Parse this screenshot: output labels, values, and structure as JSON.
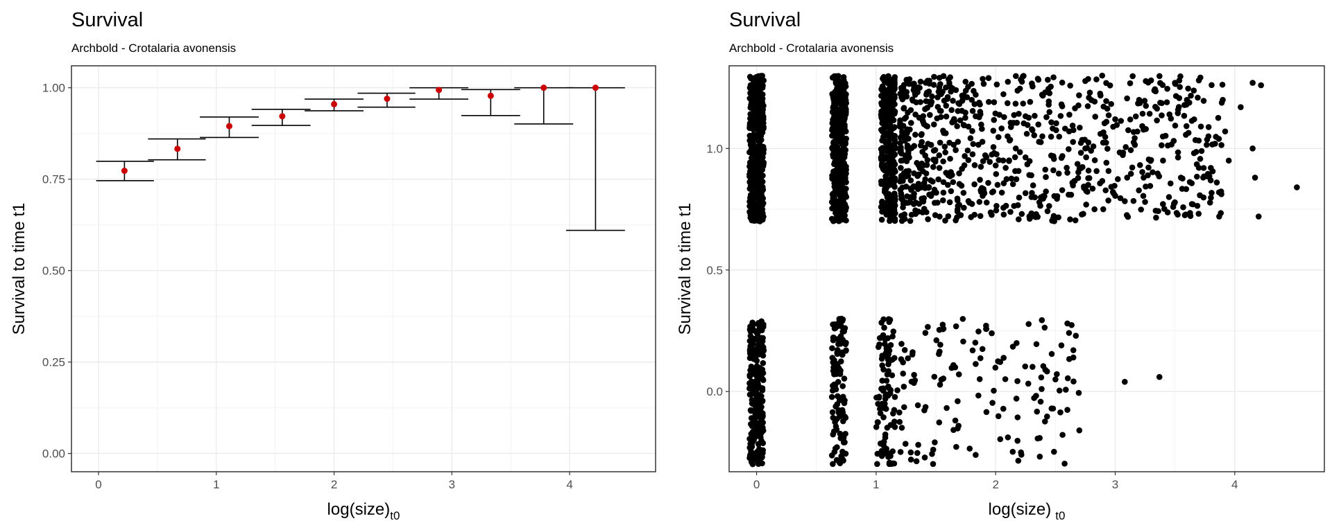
{
  "chart_data": [
    {
      "type": "errorbar",
      "title": "Survival",
      "subtitle": "Archbold - Crotalaria avonensis",
      "xlabel": "log(size)",
      "xlabel_subscript": "t0",
      "ylabel": "Survival to time t1",
      "xlim": [
        -0.23,
        4.73
      ],
      "ylim": [
        -0.05,
        1.06
      ],
      "xticks": [
        0,
        1,
        2,
        3,
        4
      ],
      "xtick_labels": [
        "0",
        "1",
        "2",
        "3",
        "4"
      ],
      "yticks": [
        0,
        0.25,
        0.5,
        0.75,
        1.0
      ],
      "ytick_labels": [
        "0.00",
        "0.25",
        "0.50",
        "0.75",
        "1.00"
      ],
      "grid": true,
      "point_color": "#cc0000",
      "bar_color": "#000000",
      "points": [
        {
          "x": 0.22,
          "y": 0.773,
          "lo": 0.746,
          "hi": 0.799,
          "xmin": -0.02,
          "xmax": 0.47
        },
        {
          "x": 0.67,
          "y": 0.833,
          "lo": 0.803,
          "hi": 0.86,
          "xmin": 0.42,
          "xmax": 0.91
        },
        {
          "x": 1.11,
          "y": 0.895,
          "lo": 0.864,
          "hi": 0.92,
          "xmin": 0.86,
          "xmax": 1.36
        },
        {
          "x": 1.56,
          "y": 0.922,
          "lo": 0.897,
          "hi": 0.941,
          "xmin": 1.3,
          "xmax": 1.8
        },
        {
          "x": 2.0,
          "y": 0.955,
          "lo": 0.937,
          "hi": 0.969,
          "xmin": 1.75,
          "xmax": 2.25
        },
        {
          "x": 2.45,
          "y": 0.97,
          "lo": 0.947,
          "hi": 0.985,
          "xmin": 2.2,
          "xmax": 2.69
        },
        {
          "x": 2.89,
          "y": 0.994,
          "lo": 0.969,
          "hi": 1.0,
          "xmin": 2.64,
          "xmax": 3.14
        },
        {
          "x": 3.33,
          "y": 0.978,
          "lo": 0.924,
          "hi": 0.995,
          "xmin": 3.08,
          "xmax": 3.58
        },
        {
          "x": 3.78,
          "y": 1.0,
          "lo": 0.901,
          "hi": 1.0,
          "xmin": 3.53,
          "xmax": 4.03
        },
        {
          "x": 4.22,
          "y": 1.0,
          "lo": 0.61,
          "hi": 1.0,
          "xmin": 3.97,
          "xmax": 4.47
        }
      ]
    },
    {
      "type": "scatter",
      "title": "Survival",
      "subtitle": "Archbold - Crotalaria avonensis",
      "xlabel": "log(size)",
      "xlabel_subscript": "t0",
      "ylabel": "Survival to time t1",
      "xlim": [
        -0.23,
        4.75
      ],
      "ylim": [
        -0.33,
        1.34
      ],
      "xticks": [
        0,
        1,
        2,
        3,
        4
      ],
      "xtick_labels": [
        "0",
        "1",
        "2",
        "3",
        "4"
      ],
      "yticks": [
        0,
        0.5,
        1.0
      ],
      "ytick_labels": [
        "0.0",
        "0.5",
        "1.0"
      ],
      "grid": true,
      "point_color": "#000000",
      "jitter": "outcome values 0 and 1 jittered by up to ±0.3; size values jittered ±0.1",
      "columns": [
        {
          "x": 0.0,
          "survived": 420,
          "died": 230,
          "spread": 0.06
        },
        {
          "x": 0.69,
          "survived": 360,
          "died": 110,
          "spread": 0.06
        },
        {
          "x": 1.1,
          "survived": 300,
          "died": 60,
          "spread": 0.06
        }
      ],
      "survived_range": [
        1.2,
        3.9
      ],
      "survived_count": 750,
      "survived_points": [
        [
          1.25,
          0.97
        ],
        [
          1.4,
          1.1
        ],
        [
          1.6,
          0.85
        ],
        [
          1.8,
          1.2
        ],
        [
          2.0,
          0.93
        ],
        [
          2.1,
          1.05
        ],
        [
          2.3,
          0.8
        ],
        [
          2.45,
          1.15
        ],
        [
          2.6,
          0.9
        ],
        [
          2.75,
          1.0
        ],
        [
          2.9,
          0.75
        ],
        [
          3.0,
          1.12
        ],
        [
          3.1,
          0.88
        ],
        [
          3.2,
          1.2
        ],
        [
          3.25,
          0.78
        ],
        [
          3.3,
          1.28
        ],
        [
          3.4,
          0.95
        ],
        [
          3.45,
          0.8
        ],
        [
          3.5,
          1.27
        ],
        [
          3.55,
          0.88
        ],
        [
          3.6,
          1.2
        ],
        [
          3.65,
          0.77
        ],
        [
          3.7,
          1.28
        ],
        [
          3.78,
          1.05
        ],
        [
          3.8,
          0.92
        ],
        [
          3.85,
          0.86
        ],
        [
          3.87,
          0.72
        ],
        [
          3.9,
          1.2
        ],
        [
          3.92,
          1.07
        ],
        [
          3.95,
          0.95
        ],
        [
          4.05,
          1.17
        ],
        [
          4.15,
          1.27
        ],
        [
          4.15,
          1.0
        ],
        [
          4.17,
          0.88
        ],
        [
          4.2,
          0.72
        ],
        [
          4.22,
          1.26
        ],
        [
          4.52,
          0.84
        ]
      ],
      "died_range": [
        1.0,
        2.7
      ],
      "died_count": 170,
      "died_points": [
        [
          2.5,
          0.05
        ],
        [
          2.48,
          -0.07
        ],
        [
          2.55,
          0.19
        ],
        [
          2.6,
          0.28
        ],
        [
          2.65,
          0.17
        ],
        [
          2.65,
          0.14
        ],
        [
          2.7,
          -0.16
        ],
        [
          3.08,
          0.04
        ],
        [
          3.37,
          0.06
        ]
      ]
    }
  ]
}
